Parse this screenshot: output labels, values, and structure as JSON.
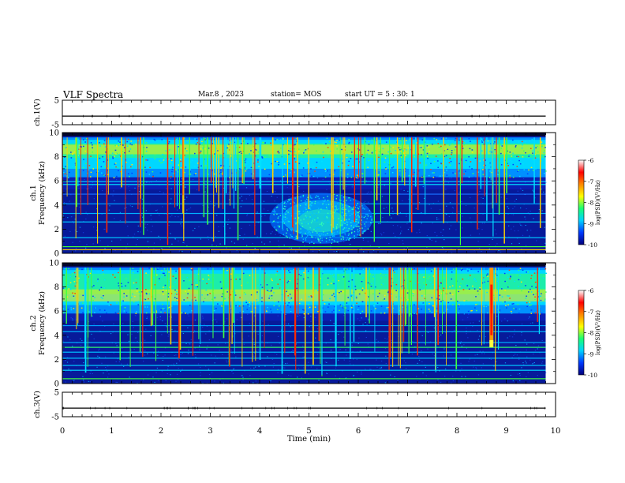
{
  "header": {
    "title": "VLF Spectra",
    "date": "Mar.8 , 2023",
    "station": "station= MOS",
    "start": "start UT = 5 : 30: 1"
  },
  "chart_data": [
    {
      "type": "line",
      "panel": "ch.1 waveform",
      "ylabel": "ch.1(V)",
      "ylim": [
        -5,
        5
      ],
      "y_ticks": [
        "5",
        "-5"
      ],
      "xlim": [
        0,
        10
      ],
      "trace_level_V": -1.5,
      "grid": false
    },
    {
      "type": "heatmap",
      "panel": "ch.1 spectrogram",
      "ylabel": "ch.1\nFrequency (kHz)",
      "xlim": [
        0,
        10
      ],
      "ylim": [
        0,
        10
      ],
      "y_ticks": [
        "0",
        "2",
        "4",
        "6",
        "8",
        "10"
      ],
      "colorbar": {
        "label": "log(PSD)(V²/Hz)",
        "range": [
          -10,
          -6
        ],
        "ticks": [
          "-6",
          "-7",
          "-8",
          "-9",
          "-10"
        ],
        "colors": [
          "#00007a",
          "#0038ff",
          "#00d2ff",
          "#19ff73",
          "#ffff00",
          "#ff8800",
          "#ff0000",
          "#ffffff"
        ]
      },
      "features": {
        "strong_band_kHz": [
          6.3,
          9.6
        ],
        "broadband_hiss_time_min": [
          4.2,
          6.3
        ],
        "broadband_hiss_freq_kHz": [
          0.8,
          5.0
        ],
        "data_end_min": 9.8
      }
    },
    {
      "type": "heatmap",
      "panel": "ch.2 spectrogram",
      "ylabel": "ch.2\nFrequency (kHz)",
      "xlim": [
        0,
        10
      ],
      "ylim": [
        0,
        10
      ],
      "y_ticks": [
        "0",
        "2",
        "4",
        "6",
        "8",
        "10"
      ],
      "colorbar": {
        "label": "log(PSD)(V²/Hz)",
        "range": [
          -10,
          -6
        ],
        "ticks": [
          "-6",
          "-7",
          "-8",
          "-9",
          "-10"
        ],
        "colors": [
          "#00007a",
          "#0038ff",
          "#00d2ff",
          "#19ff73",
          "#ffff00",
          "#ff8800",
          "#ff0000",
          "#ffffff"
        ]
      },
      "features": {
        "strong_band_kHz": [
          5.8,
          9.6
        ],
        "strong_event_time_min": 8.7,
        "data_end_min": 9.8
      }
    },
    {
      "type": "line",
      "panel": "ch.3 waveform",
      "ylabel": "ch.3(V)",
      "ylim": [
        -5,
        5
      ],
      "y_ticks": [
        "5",
        "-5"
      ],
      "xlim": [
        0,
        10
      ],
      "x_ticks": [
        "0",
        "1",
        "2",
        "3",
        "4",
        "5",
        "6",
        "7",
        "8",
        "9",
        "10"
      ],
      "xlabel": "Time (min)",
      "trace_level_V": -1.5,
      "grid": false
    }
  ]
}
